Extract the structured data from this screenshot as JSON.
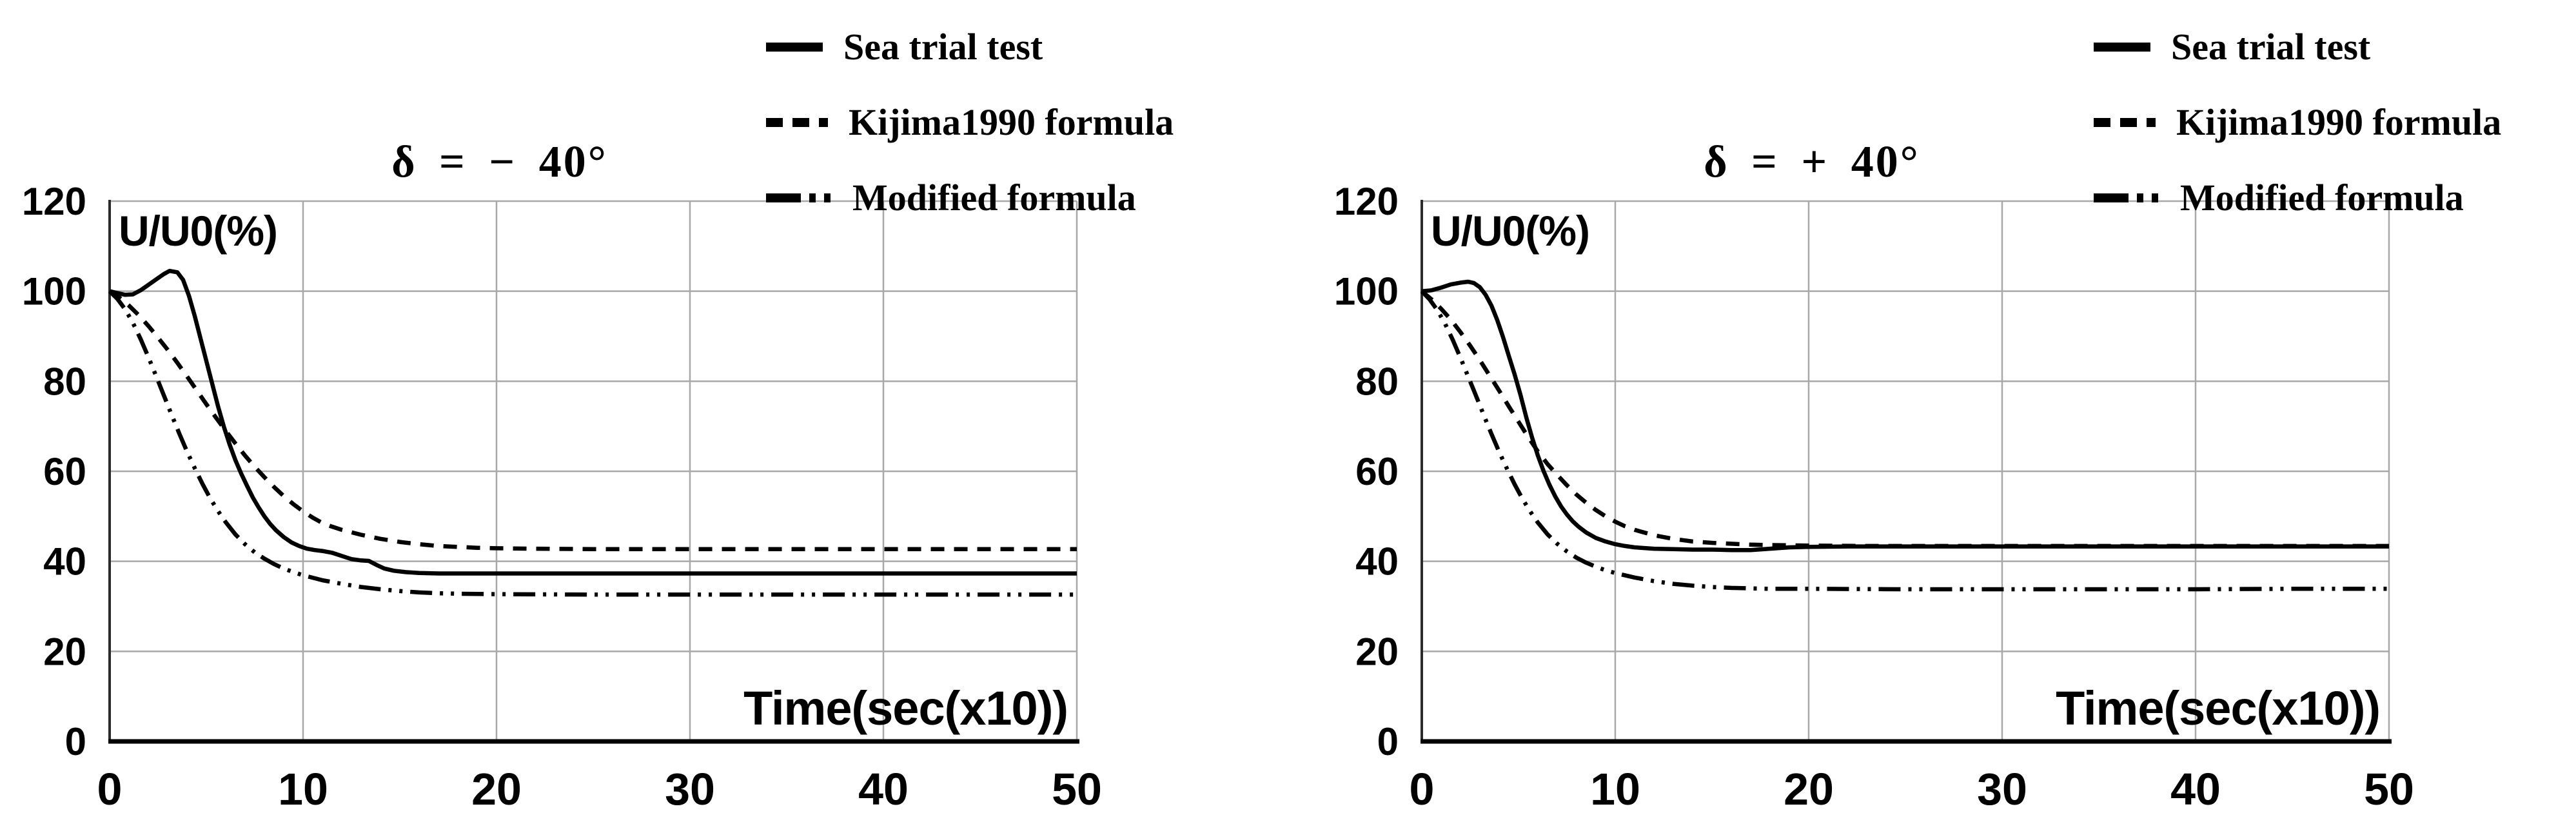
{
  "figure_title": "",
  "chart_data": [
    {
      "type": "line",
      "title": "δ = − 40°",
      "ylabel": "U/U0(%)",
      "xlabel": "Time(sec(x10))",
      "xlim": [
        0,
        50
      ],
      "ylim": [
        0,
        120
      ],
      "x_ticks": [
        0,
        10,
        20,
        30,
        40,
        50
      ],
      "y_ticks": [
        0,
        20,
        40,
        60,
        80,
        100,
        120
      ],
      "grid": true,
      "legend_position": "top-right",
      "line_color": "#000000",
      "grid_color": "#a8a8a8",
      "series": [
        {
          "name": "Sea trial test",
          "line_style": "solid",
          "points": [
            [
              0,
              100
            ],
            [
              0.4,
              99.6
            ],
            [
              0.8,
              99.2
            ],
            [
              1.2,
              99.3
            ],
            [
              1.6,
              100.2
            ],
            [
              2,
              101.4
            ],
            [
              2.4,
              102.6
            ],
            [
              2.8,
              103.8
            ],
            [
              3.1,
              104.5
            ],
            [
              3.5,
              104.2
            ],
            [
              3.8,
              102.5
            ],
            [
              4.1,
              99
            ],
            [
              4.4,
              94.5
            ],
            [
              4.7,
              89.5
            ],
            [
              5,
              84.5
            ],
            [
              5.3,
              79.5
            ],
            [
              5.6,
              74.5
            ],
            [
              5.9,
              70
            ],
            [
              6.2,
              66
            ],
            [
              6.5,
              62.5
            ],
            [
              6.8,
              59.5
            ],
            [
              7.1,
              56.8
            ],
            [
              7.4,
              54.2
            ],
            [
              7.7,
              52
            ],
            [
              8,
              50
            ],
            [
              8.3,
              48.3
            ],
            [
              8.6,
              46.9
            ],
            [
              9,
              45.4
            ],
            [
              9.4,
              44.2
            ],
            [
              9.8,
              43.4
            ],
            [
              10.2,
              42.8
            ],
            [
              10.6,
              42.5
            ],
            [
              11,
              42.3
            ],
            [
              11.5,
              41.9
            ],
            [
              12,
              41.2
            ],
            [
              12.5,
              40.5
            ],
            [
              13,
              40.2
            ],
            [
              13.4,
              40.1
            ],
            [
              13.8,
              39.2
            ],
            [
              14.2,
              38.4
            ],
            [
              14.7,
              37.9
            ],
            [
              15.3,
              37.6
            ],
            [
              16,
              37.4
            ],
            [
              17,
              37.3
            ],
            [
              18,
              37.3
            ],
            [
              20,
              37.3
            ],
            [
              24,
              37.3
            ],
            [
              28,
              37.3
            ],
            [
              32,
              37.3
            ],
            [
              36,
              37.3
            ],
            [
              40,
              37.3
            ],
            [
              45,
              37.3
            ],
            [
              50,
              37.3
            ]
          ]
        },
        {
          "name": "Kijima1990 formula",
          "line_style": "dashed",
          "points": [
            [
              0,
              100
            ],
            [
              0.5,
              98.6
            ],
            [
              1,
              96.8
            ],
            [
              1.5,
              94.7
            ],
            [
              2,
              92.3
            ],
            [
              2.5,
              89.7
            ],
            [
              3,
              87
            ],
            [
              3.5,
              84.1
            ],
            [
              4,
              81.1
            ],
            [
              4.5,
              78
            ],
            [
              5,
              74.9
            ],
            [
              5.5,
              71.9
            ],
            [
              6,
              69
            ],
            [
              6.5,
              66.2
            ],
            [
              7,
              63.5
            ],
            [
              7.5,
              61
            ],
            [
              8,
              58.7
            ],
            [
              8.5,
              56.5
            ],
            [
              9,
              54.5
            ],
            [
              9.5,
              52.7
            ],
            [
              10,
              51.1
            ],
            [
              10.5,
              49.7
            ],
            [
              11,
              48.5
            ],
            [
              11.5,
              47.7
            ],
            [
              12,
              47
            ],
            [
              13,
              45.9
            ],
            [
              14,
              45
            ],
            [
              15,
              44.3
            ],
            [
              16,
              43.8
            ],
            [
              17,
              43.4
            ],
            [
              18,
              43.2
            ],
            [
              19,
              43
            ],
            [
              20,
              42.9
            ],
            [
              22,
              42.8
            ],
            [
              25,
              42.7
            ],
            [
              30,
              42.7
            ],
            [
              35,
              42.7
            ],
            [
              40,
              42.7
            ],
            [
              45,
              42.7
            ],
            [
              50,
              42.7
            ]
          ]
        },
        {
          "name": "Modified formula",
          "line_style": "dash-dot-dot",
          "points": [
            [
              0,
              100
            ],
            [
              0.4,
              98.3
            ],
            [
              0.8,
              96
            ],
            [
              1.2,
              93
            ],
            [
              1.6,
              89.4
            ],
            [
              2,
              85.4
            ],
            [
              2.4,
              81.2
            ],
            [
              2.8,
              76.9
            ],
            [
              3.2,
              72.6
            ],
            [
              3.6,
              68.4
            ],
            [
              4,
              64.4
            ],
            [
              4.4,
              60.7
            ],
            [
              4.8,
              57.2
            ],
            [
              5.2,
              54
            ],
            [
              5.6,
              51.2
            ],
            [
              6,
              48.7
            ],
            [
              6.5,
              46
            ],
            [
              7,
              43.8
            ],
            [
              7.5,
              42
            ],
            [
              8,
              40.6
            ],
            [
              8.5,
              39.4
            ],
            [
              9,
              38.4
            ],
            [
              9.5,
              37.6
            ],
            [
              10,
              36.9
            ],
            [
              11,
              35.8
            ],
            [
              12,
              35
            ],
            [
              13,
              34.3
            ],
            [
              14,
              33.8
            ],
            [
              15,
              33.4
            ],
            [
              16,
              33.1
            ],
            [
              17,
              32.9
            ],
            [
              18,
              32.8
            ],
            [
              20,
              32.7
            ],
            [
              25,
              32.6
            ],
            [
              30,
              32.6
            ],
            [
              35,
              32.6
            ],
            [
              40,
              32.6
            ],
            [
              45,
              32.6
            ],
            [
              50,
              32.6
            ]
          ]
        }
      ]
    },
    {
      "type": "line",
      "title": "δ = + 40°",
      "ylabel": "U/U0(%)",
      "xlabel": "Time(sec(x10))",
      "xlim": [
        0,
        50
      ],
      "ylim": [
        0,
        120
      ],
      "x_ticks": [
        0,
        10,
        20,
        30,
        40,
        50
      ],
      "y_ticks": [
        0,
        20,
        40,
        60,
        80,
        100,
        120
      ],
      "grid": true,
      "legend_position": "top-right",
      "line_color": "#000000",
      "grid_color": "#a8a8a8",
      "series": [
        {
          "name": "Sea trial test",
          "line_style": "solid",
          "points": [
            [
              0,
              100
            ],
            [
              0.5,
              100.2
            ],
            [
              1,
              100.8
            ],
            [
              1.5,
              101.5
            ],
            [
              2,
              101.9
            ],
            [
              2.4,
              102.1
            ],
            [
              2.7,
              101.8
            ],
            [
              3,
              100.9
            ],
            [
              3.3,
              99.2
            ],
            [
              3.6,
              96.8
            ],
            [
              3.9,
              93.6
            ],
            [
              4.2,
              89.8
            ],
            [
              4.5,
              85.6
            ],
            [
              4.8,
              81.5
            ],
            [
              5.1,
              77
            ],
            [
              5.4,
              72
            ],
            [
              5.7,
              67.5
            ],
            [
              6,
              63.5
            ],
            [
              6.3,
              60
            ],
            [
              6.6,
              57
            ],
            [
              6.9,
              54.4
            ],
            [
              7.2,
              52.2
            ],
            [
              7.5,
              50.4
            ],
            [
              7.8,
              48.9
            ],
            [
              8.1,
              47.7
            ],
            [
              8.5,
              46.4
            ],
            [
              9,
              45.2
            ],
            [
              9.5,
              44.4
            ],
            [
              10,
              43.8
            ],
            [
              10.5,
              43.4
            ],
            [
              11,
              43.1
            ],
            [
              12,
              42.8
            ],
            [
              13,
              42.7
            ],
            [
              14,
              42.6
            ],
            [
              15,
              42.6
            ],
            [
              16,
              42.5
            ],
            [
              17,
              42.5
            ],
            [
              18,
              42.8
            ],
            [
              19,
              43.1
            ],
            [
              20,
              43.2
            ],
            [
              22,
              43.3
            ],
            [
              25,
              43.3
            ],
            [
              30,
              43.3
            ],
            [
              35,
              43.3
            ],
            [
              40,
              43.3
            ],
            [
              45,
              43.3
            ],
            [
              50,
              43.3
            ]
          ]
        },
        {
          "name": "Kijima1990 formula",
          "line_style": "dashed",
          "points": [
            [
              0,
              100
            ],
            [
              0.5,
              98.2
            ],
            [
              1,
              96.1
            ],
            [
              1.5,
              93.7
            ],
            [
              2,
              90.9
            ],
            [
              2.5,
              87.9
            ],
            [
              3,
              84.7
            ],
            [
              3.5,
              81.3
            ],
            [
              4,
              77.9
            ],
            [
              4.5,
              74.4
            ],
            [
              5,
              71
            ],
            [
              5.5,
              67.6
            ],
            [
              6,
              64.4
            ],
            [
              6.5,
              61.6
            ],
            [
              7,
              59.2
            ],
            [
              7.5,
              56.9
            ],
            [
              8,
              54.8
            ],
            [
              8.5,
              53
            ],
            [
              9,
              51.4
            ],
            [
              9.5,
              50
            ],
            [
              10,
              48.8
            ],
            [
              10.5,
              47.8
            ],
            [
              11,
              47
            ],
            [
              12,
              45.8
            ],
            [
              13,
              45
            ],
            [
              14,
              44.4
            ],
            [
              15,
              44.1
            ],
            [
              16,
              43.9
            ],
            [
              17,
              43.7
            ],
            [
              18,
              43.6
            ],
            [
              20,
              43.5
            ],
            [
              23,
              43.4
            ],
            [
              26,
              43.4
            ],
            [
              30,
              43.4
            ],
            [
              35,
              43.4
            ],
            [
              40,
              43.4
            ],
            [
              45,
              43.4
            ],
            [
              50,
              43.4
            ]
          ]
        },
        {
          "name": "Modified formula",
          "line_style": "dash-dot-dot",
          "points": [
            [
              0,
              100
            ],
            [
              0.4,
              98.2
            ],
            [
              0.8,
              95.8
            ],
            [
              1.2,
              92.8
            ],
            [
              1.6,
              89.2
            ],
            [
              2,
              85.2
            ],
            [
              2.4,
              81
            ],
            [
              2.8,
              76.8
            ],
            [
              3.2,
              72.5
            ],
            [
              3.6,
              68.3
            ],
            [
              4,
              64.3
            ],
            [
              4.4,
              60.6
            ],
            [
              4.8,
              57.1
            ],
            [
              5.2,
              53.9
            ],
            [
              5.6,
              51.1
            ],
            [
              6,
              48.6
            ],
            [
              6.5,
              46
            ],
            [
              7,
              43.9
            ],
            [
              7.5,
              42.2
            ],
            [
              8,
              40.8
            ],
            [
              8.5,
              39.7
            ],
            [
              9,
              38.8
            ],
            [
              9.5,
              38
            ],
            [
              10,
              37.4
            ],
            [
              11,
              36.4
            ],
            [
              12,
              35.6
            ],
            [
              13,
              35
            ],
            [
              14,
              34.6
            ],
            [
              15,
              34.3
            ],
            [
              16,
              34.1
            ],
            [
              17,
              34
            ],
            [
              18,
              33.9
            ],
            [
              20,
              33.9
            ],
            [
              25,
              33.8
            ],
            [
              30,
              33.8
            ],
            [
              35,
              33.8
            ],
            [
              40,
              33.8
            ],
            [
              45,
              33.9
            ],
            [
              50,
              33.9
            ]
          ]
        }
      ]
    }
  ]
}
